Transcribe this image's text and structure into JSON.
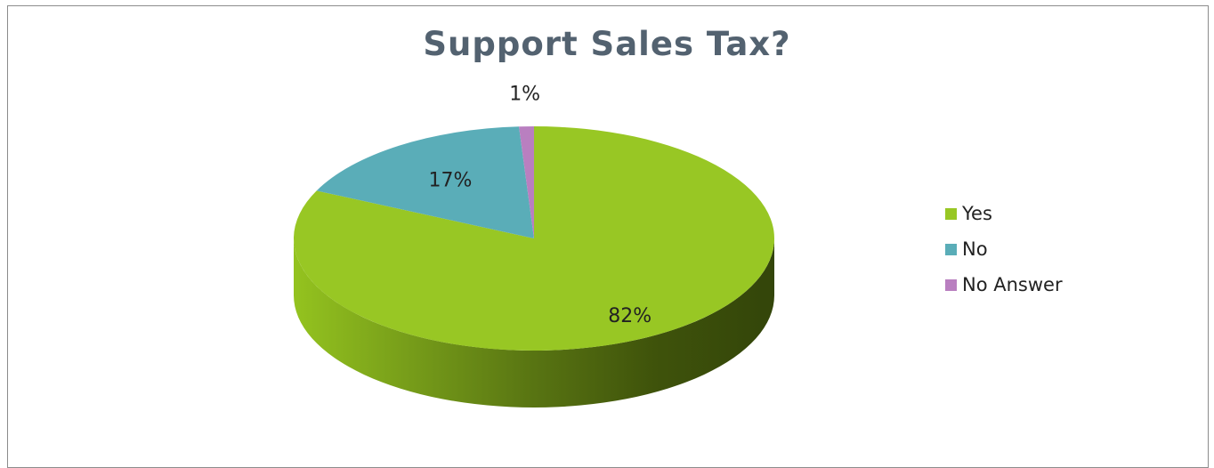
{
  "chart_data": {
    "type": "pie",
    "style": "3d",
    "title": "Support Sales Tax?",
    "categories": [
      "Yes",
      "No",
      "No Answer"
    ],
    "values": [
      82,
      17,
      1
    ],
    "labels": [
      "82%",
      "17%",
      "1%"
    ],
    "colors": [
      "#98c724",
      "#5aadb8",
      "#b97fc0"
    ],
    "legend": "right"
  }
}
